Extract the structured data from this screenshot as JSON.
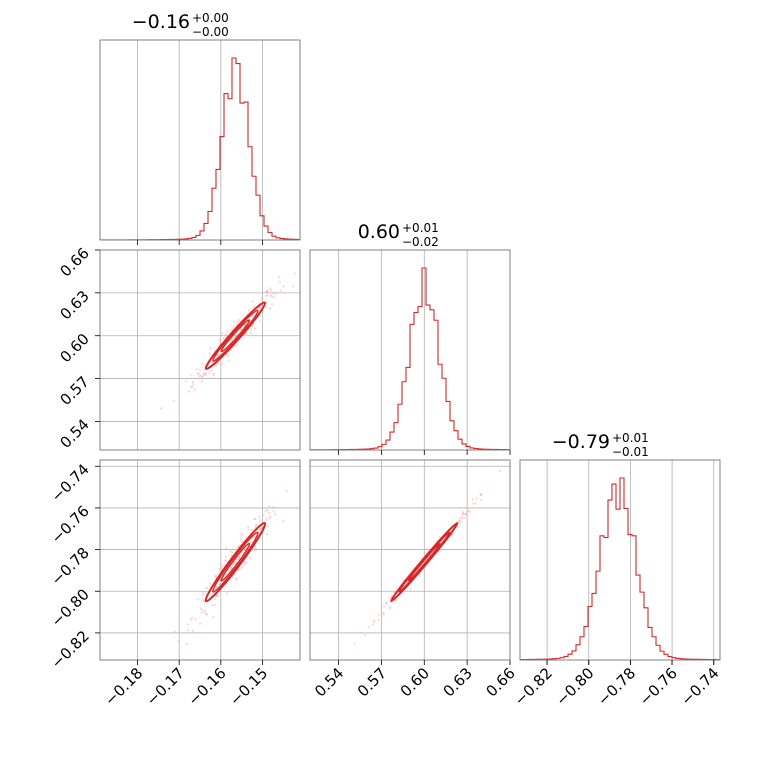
{
  "chart_data": {
    "type": "corner",
    "color": "#d62728",
    "parameters": [
      {
        "median": -0.16,
        "plus": 0.0,
        "minus": 0.0,
        "title_value": "−0.16",
        "title_plus": "+0.00",
        "title_minus": "−0.00",
        "range": [
          -0.189,
          -0.141
        ],
        "ticks": [
          -0.18,
          -0.17,
          -0.16,
          -0.15
        ],
        "tick_labels": [
          "−0.18",
          "−0.17",
          "−0.16",
          "−0.15"
        ],
        "hist_mean": -0.1565,
        "hist_sd": 0.0032
      },
      {
        "median": 0.6,
        "plus": 0.01,
        "minus": 0.02,
        "title_value": "0.60",
        "title_plus": "+0.01",
        "title_minus": "−0.02",
        "range": [
          0.52,
          0.66
        ],
        "ticks": [
          0.54,
          0.57,
          0.6,
          0.63,
          0.66
        ],
        "tick_labels": [
          "0.54",
          "0.57",
          "0.60",
          "0.63",
          "0.66"
        ],
        "hist_mean": 0.6,
        "hist_sd": 0.0105
      },
      {
        "median": -0.79,
        "plus": 0.01,
        "minus": 0.01,
        "title_value": "−0.79",
        "title_plus": "+0.01",
        "title_minus": "−0.01",
        "range": [
          -0.833,
          -0.737
        ],
        "ticks": [
          -0.82,
          -0.8,
          -0.78,
          -0.76,
          -0.74
        ],
        "tick_labels": [
          "−0.82",
          "−0.80",
          "−0.78",
          "−0.76",
          "−0.74"
        ],
        "hist_mean": -0.786,
        "hist_sd": 0.0085
      }
    ],
    "grid": true
  }
}
